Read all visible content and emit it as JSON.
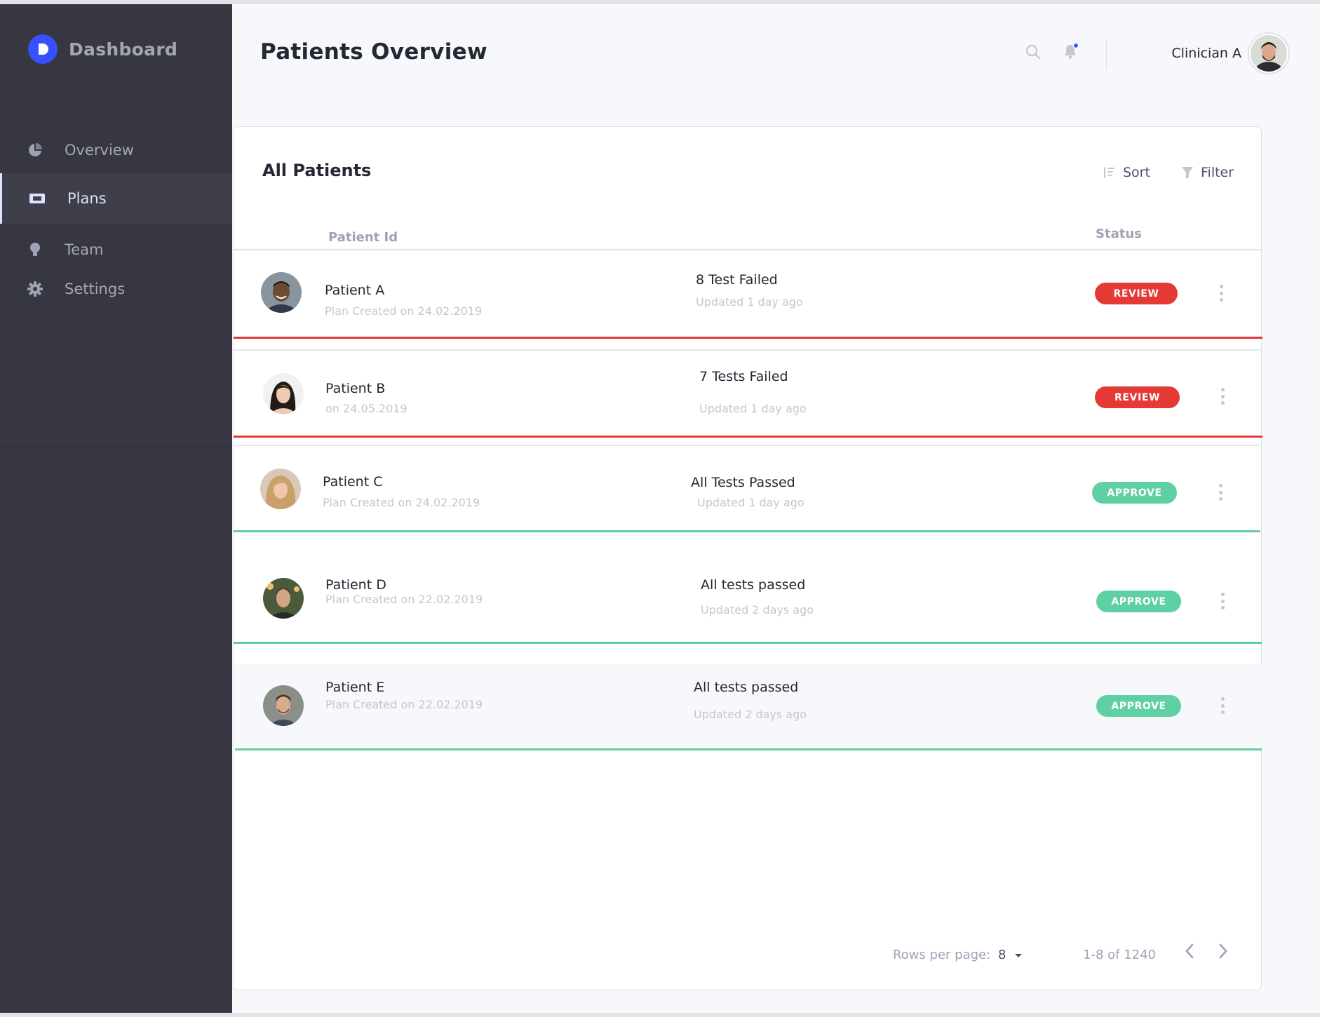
{
  "sidebar": {
    "brand": "Dashboard",
    "brand_letter": "D",
    "items": [
      {
        "label": "Overview",
        "icon": "pie-chart-icon"
      },
      {
        "label": "Plans",
        "icon": "ticket-icon",
        "active": true
      },
      {
        "label": "Team",
        "icon": "lightbulb-icon"
      },
      {
        "label": "Settings",
        "icon": "gear-icon"
      }
    ]
  },
  "header": {
    "title": "Patients Overview",
    "user_name": "Clinician A",
    "icons": [
      "search-icon",
      "bell-icon"
    ],
    "notification_dot": true
  },
  "card": {
    "title": "All Patients",
    "sort_label": "Sort",
    "filter_label": "Filter",
    "columns": {
      "patient_id": "Patient Id",
      "status": "Status"
    },
    "rows": [
      {
        "name": "Patient A",
        "sub": "Plan Created on 24.02.2019",
        "details": "8 Test Failed",
        "updated": "Updated 1 day ago",
        "status": "REVIEW"
      },
      {
        "name": "Patient B",
        "sub": "on 24.05.2019",
        "details": "7 Tests Failed",
        "updated": "Updated 1 day ago",
        "status": "REVIEW"
      },
      {
        "name": "Patient C",
        "sub": "Plan Created on 24.02.2019",
        "details": "All Tests Passed",
        "updated": "Updated 1 day ago",
        "status": "APPROVE"
      },
      {
        "name": "Patient D",
        "sub": "Plan Created on 22.02.2019",
        "details": "All tests passed",
        "updated": "Updated 2 days ago",
        "status": "APPROVE"
      },
      {
        "name": "Patient E",
        "sub": "Plan Created on 22.02.2019",
        "details": "All tests passed",
        "updated": "Updated 2 days ago",
        "status": "APPROVE"
      }
    ],
    "footer": {
      "rows_per_page_label": "Rows per page:",
      "rows_per_page_value": "8",
      "range": "1-8 of 1240"
    }
  },
  "colors": {
    "sidebar_bg": "#363740",
    "accent": "#3751ff",
    "review": "#e53935",
    "approve": "#5fd0a3"
  }
}
